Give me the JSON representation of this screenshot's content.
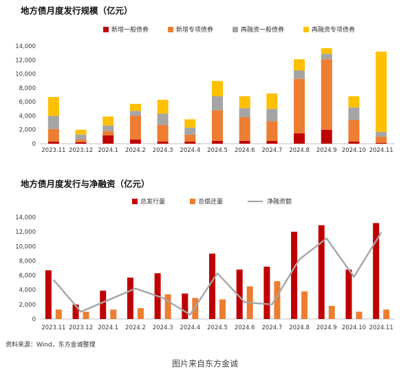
{
  "caption": "图片来自东方金诚",
  "source_note": "资料来源：Wind，东方金诚整理",
  "colors": {
    "new_general": "#C00000",
    "new_special": "#ED7D31",
    "refi_general": "#A5A5A5",
    "refi_special": "#FFC000",
    "total_issuance": "#C00000",
    "total_repayment": "#ED7D31",
    "net_financing": "#A5A5A5",
    "axis": "#BFBFBF"
  },
  "chart_data": [
    {
      "type": "bar",
      "stacked": true,
      "title": "地方债月度发行规模（亿元）",
      "categories": [
        "2023.11",
        "2023.12",
        "2024.1",
        "2024.2",
        "2024.3",
        "2024.4",
        "2024.5",
        "2024.6",
        "2024.7",
        "2024.8",
        "2024.9",
        "2024.10",
        "2024.11"
      ],
      "ylim": [
        0,
        14000
      ],
      "yticks": [
        "0",
        "2,000",
        "4,000",
        "6,000",
        "8,000",
        "10,000",
        "12,000",
        "14,000"
      ],
      "legend_position": "top",
      "series": [
        {
          "name": "新增一般债券",
          "color_key": "new_general",
          "values": [
            300,
            200,
            1200,
            600,
            300,
            300,
            400,
            400,
            400,
            1500,
            2000,
            300,
            100
          ]
        },
        {
          "name": "新增专项债券",
          "color_key": "new_special",
          "values": [
            1800,
            400,
            600,
            3400,
            2400,
            1000,
            4400,
            3400,
            2800,
            7800,
            10100,
            3100,
            900
          ]
        },
        {
          "name": "再融资一般债券",
          "color_key": "refi_general",
          "values": [
            1900,
            700,
            800,
            700,
            1600,
            1000,
            2000,
            1300,
            1800,
            1200,
            800,
            1800,
            700
          ]
        },
        {
          "name": "再融资专项债券",
          "color_key": "refi_special",
          "values": [
            2700,
            700,
            1300,
            1000,
            2000,
            1200,
            2200,
            1700,
            2200,
            1600,
            800,
            1600,
            11500
          ]
        }
      ]
    },
    {
      "type": "bar",
      "title": "地方债月度发行与净融资（亿元）",
      "categories": [
        "2023.11",
        "2023.12",
        "2024.1",
        "2024.2",
        "2024.3",
        "2024.4",
        "2024.5",
        "2024.6",
        "2024.7",
        "2024.8",
        "2024.9",
        "2024.10",
        "2024.11"
      ],
      "ylim": [
        0,
        14000
      ],
      "yticks": [
        "0",
        "2,000",
        "4,000",
        "6,000",
        "8,000",
        "10,000",
        "12,000",
        "14,000"
      ],
      "legend_position": "top",
      "series": [
        {
          "name": "总发行量",
          "type": "bar",
          "color_key": "total_issuance",
          "values": [
            6700,
            2000,
            3900,
            5700,
            6300,
            3500,
            9000,
            6800,
            7200,
            12000,
            12900,
            6800,
            13200
          ]
        },
        {
          "name": "总偿还量",
          "type": "bar",
          "color_key": "total_repayment",
          "values": [
            1300,
            1000,
            1300,
            1500,
            3400,
            2900,
            2700,
            4500,
            5200,
            3800,
            1800,
            1000,
            1300
          ]
        },
        {
          "name": "净融资额",
          "type": "line",
          "color_key": "net_financing",
          "values": [
            5400,
            1000,
            2600,
            4200,
            2900,
            600,
            6300,
            2300,
            2000,
            8200,
            11100,
            5800,
            11900
          ]
        }
      ]
    }
  ]
}
